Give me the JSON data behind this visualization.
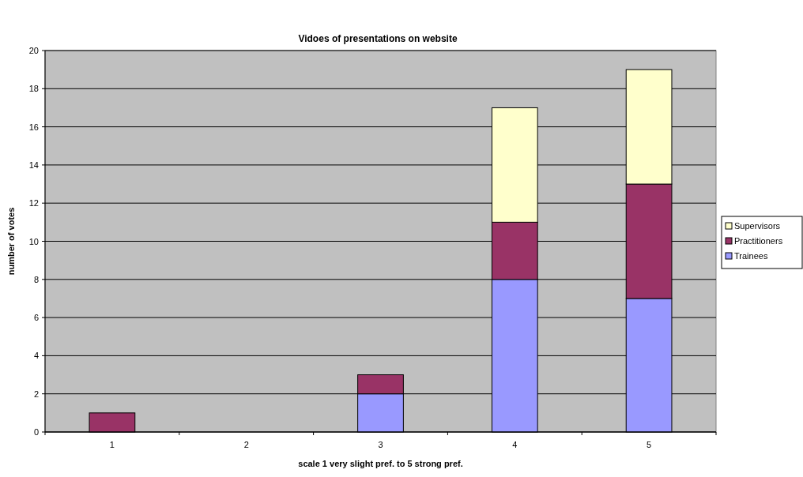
{
  "chart_data": {
    "type": "bar",
    "title": "Vidoes of presentations on website",
    "xlabel": "scale 1 very slight pref. to 5 strong pref.",
    "ylabel": "number of votes",
    "categories": [
      "1",
      "2",
      "3",
      "4",
      "5"
    ],
    "stacked": true,
    "series": [
      {
        "name": "Trainees",
        "color": "#9999ff",
        "values": [
          0,
          0,
          2,
          8,
          7
        ]
      },
      {
        "name": "Practitioners",
        "color": "#993366",
        "values": [
          1,
          0,
          1,
          3,
          6
        ]
      },
      {
        "name": "Supervisors",
        "color": "#ffffcc",
        "values": [
          0,
          0,
          0,
          6,
          6
        ]
      }
    ],
    "ylim": [
      0,
      20
    ],
    "yticks": [
      0,
      2,
      4,
      6,
      8,
      10,
      12,
      14,
      16,
      18,
      20
    ],
    "grid": "y",
    "legend": "right"
  }
}
